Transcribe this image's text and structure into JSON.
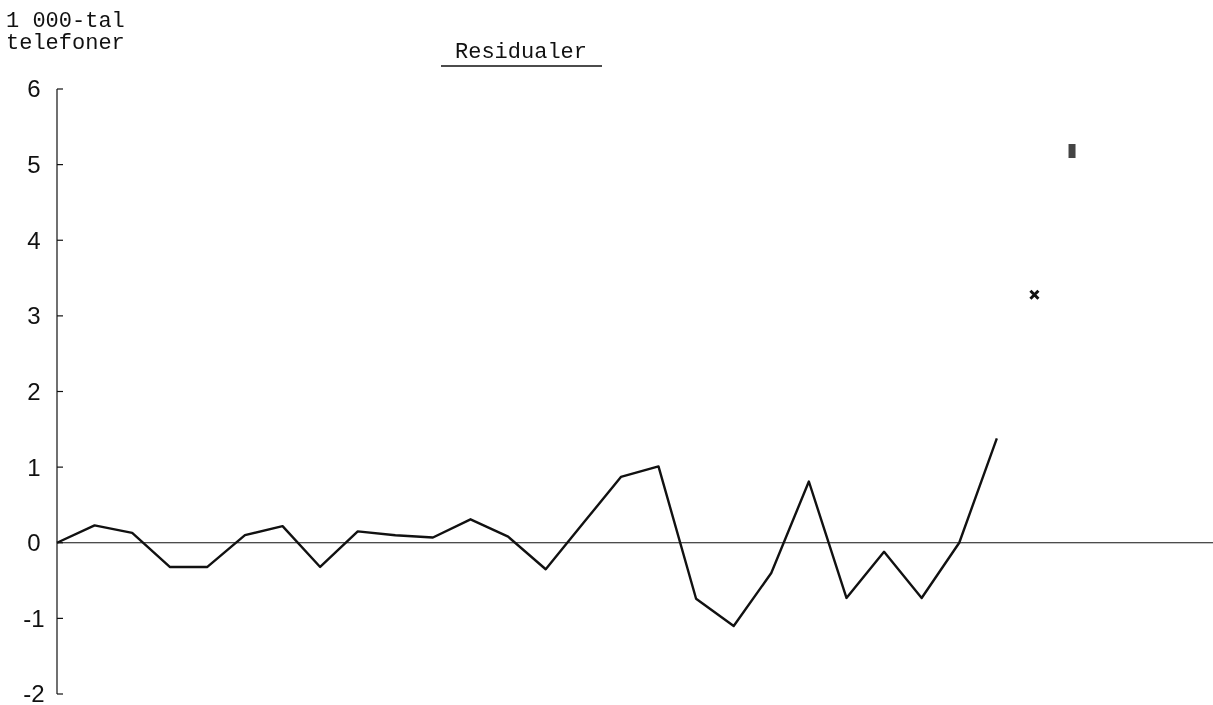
{
  "chart_data": {
    "type": "line",
    "title": "Residualer",
    "ylabel": "1 000-tal\ntelefoner",
    "categories": [
      null,
      null,
      null,
      null,
      null,
      null,
      null,
      null,
      null,
      null,
      null,
      null,
      null,
      null,
      null,
      null,
      null,
      null,
      null,
      null,
      null,
      null,
      null,
      null,
      null,
      null,
      null,
      null
    ],
    "series": [
      {
        "type": "line",
        "color": "#111111",
        "values": [
          0,
          0.23,
          0.13,
          -0.32,
          -0.32,
          0.1,
          0.22,
          -0.32,
          0.15,
          0.1,
          0.07,
          0.31,
          0.08,
          -0.35,
          0.26,
          0.87,
          1.01,
          -0.74,
          -1.1,
          -0.4,
          0.81,
          -0.73,
          -0.12,
          -0.73,
          0,
          1.38,
          null,
          null
        ]
      },
      {
        "type": "scatter",
        "color": "#111111",
        "marker": "cross",
        "values": [
          null,
          null,
          null,
          null,
          null,
          null,
          null,
          null,
          null,
          null,
          null,
          null,
          null,
          null,
          null,
          null,
          null,
          null,
          null,
          null,
          null,
          null,
          null,
          null,
          null,
          null,
          3.28,
          null
        ]
      },
      {
        "type": "scatter",
        "color": "#444444",
        "marker": "square",
        "values": [
          null,
          null,
          null,
          null,
          null,
          null,
          null,
          null,
          null,
          null,
          null,
          null,
          null,
          null,
          null,
          null,
          null,
          null,
          null,
          null,
          null,
          null,
          null,
          null,
          null,
          null,
          null,
          5.18
        ]
      }
    ],
    "ylim": [
      -2,
      6
    ],
    "yticks": [
      -2,
      -1,
      0,
      1,
      2,
      3,
      4,
      5,
      6
    ]
  }
}
